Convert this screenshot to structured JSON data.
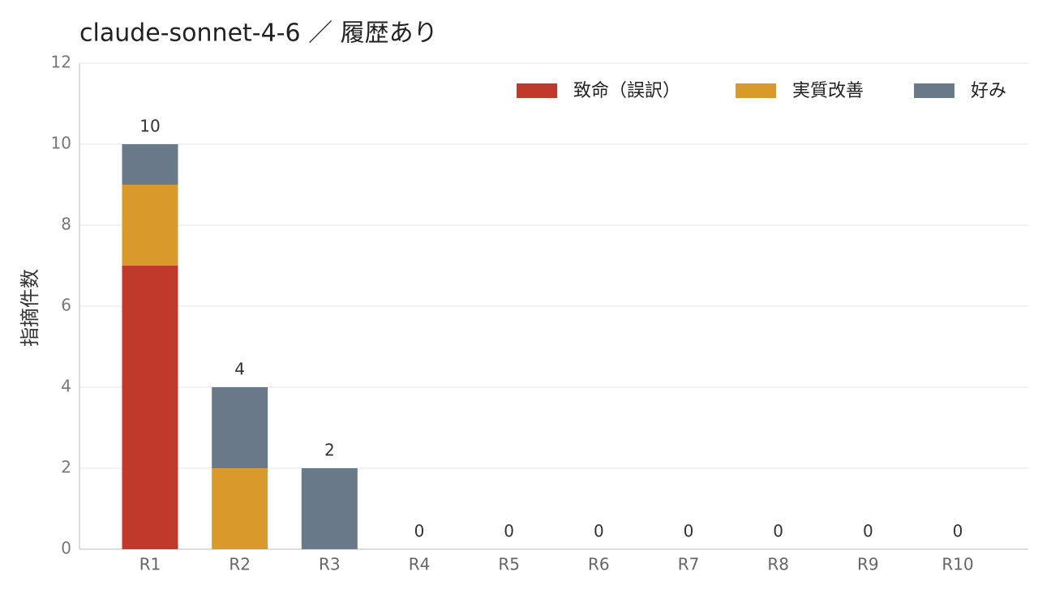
{
  "chart_data": {
    "type": "stacked_bar",
    "title": "claude-sonnet-4-6 ／ 履歴あり",
    "y_label": "指摘件数",
    "categories": [
      "R1",
      "R2",
      "R3",
      "R4",
      "R5",
      "R6",
      "R7",
      "R8",
      "R9",
      "R10"
    ],
    "series": [
      {
        "name": "致命（誤訳）",
        "color": "#c0392b",
        "values": [
          7,
          0,
          0,
          0,
          0,
          0,
          0,
          0,
          0,
          0
        ]
      },
      {
        "name": "実質改善",
        "color": "#da9a2b",
        "values": [
          2,
          2,
          0,
          0,
          0,
          0,
          0,
          0,
          0,
          0
        ]
      },
      {
        "name": "好み",
        "color": "#6b7a8a",
        "values": [
          1,
          2,
          2,
          0,
          0,
          0,
          0,
          0,
          0,
          0
        ]
      }
    ],
    "totals": [
      10,
      4,
      2,
      0,
      0,
      0,
      0,
      0,
      0,
      0
    ],
    "ylim": [
      0,
      12
    ],
    "yticks": [
      0,
      2,
      4,
      6,
      8,
      10,
      12
    ],
    "grid": true,
    "legend": "top-right"
  }
}
